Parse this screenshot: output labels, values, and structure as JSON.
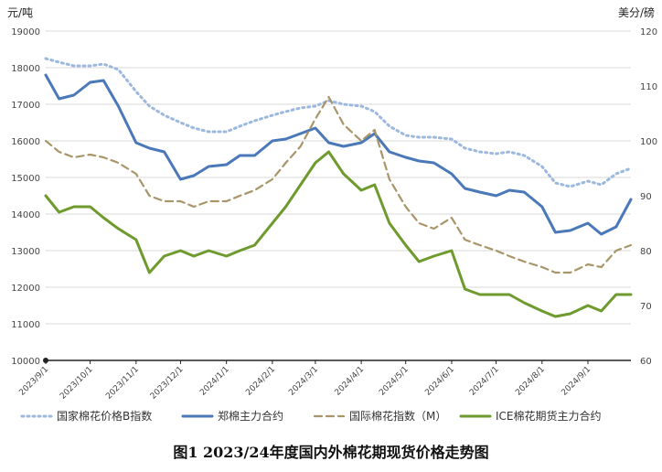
{
  "chart_data": {
    "type": "line",
    "title": "图1 2023/24年度国内外棉花期现货价格走势图",
    "left_axis": {
      "unit": "元/吨",
      "ylim": [
        10000,
        19000
      ],
      "ticks": [
        10000,
        11000,
        12000,
        13000,
        14000,
        15000,
        16000,
        17000,
        18000,
        19000
      ]
    },
    "right_axis": {
      "unit": "美分/磅",
      "ylim": [
        60,
        120
      ],
      "ticks": [
        60,
        70,
        80,
        90,
        100,
        110,
        120
      ]
    },
    "x_ticks": [
      "2023/9/1",
      "2023/10/1",
      "2023/11/1",
      "2023/12/1",
      "2024/1/1",
      "2024/2/1",
      "2024/3/1",
      "2024/4/1",
      "2024/5/1",
      "2024/6/1",
      "2024/7/1",
      "2024/8/1",
      "2024/9/1"
    ],
    "grid": "horizontal",
    "legend_position": "bottom",
    "series": [
      {
        "name": "国家棉花价格B指数",
        "axis": "left",
        "color": "#9db8de",
        "style": "dotted",
        "points": [
          [
            "2023/9/1",
            18250
          ],
          [
            "2023/9/10",
            18150
          ],
          [
            "2023/9/20",
            18050
          ],
          [
            "2023/10/1",
            18050
          ],
          [
            "2023/10/10",
            18100
          ],
          [
            "2023/10/20",
            17950
          ],
          [
            "2023/11/1",
            17350
          ],
          [
            "2023/11/10",
            16950
          ],
          [
            "2023/11/20",
            16700
          ],
          [
            "2023/12/1",
            16500
          ],
          [
            "2023/12/10",
            16350
          ],
          [
            "2023/12/20",
            16250
          ],
          [
            "2024/1/1",
            16250
          ],
          [
            "2024/1/10",
            16400
          ],
          [
            "2024/1/20",
            16550
          ],
          [
            "2024/2/1",
            16700
          ],
          [
            "2024/2/10",
            16800
          ],
          [
            "2024/2/20",
            16900
          ],
          [
            "2024/3/1",
            16950
          ],
          [
            "2024/3/10",
            17100
          ],
          [
            "2024/3/20",
            17000
          ],
          [
            "2024/4/1",
            16950
          ],
          [
            "2024/4/10",
            16800
          ],
          [
            "2024/4/20",
            16400
          ],
          [
            "2024/5/1",
            16150
          ],
          [
            "2024/5/10",
            16100
          ],
          [
            "2024/5/20",
            16100
          ],
          [
            "2024/6/1",
            16050
          ],
          [
            "2024/6/10",
            15800
          ],
          [
            "2024/6/20",
            15700
          ],
          [
            "2024/7/1",
            15650
          ],
          [
            "2024/7/10",
            15700
          ],
          [
            "2024/7/20",
            15600
          ],
          [
            "2024/8/1",
            15300
          ],
          [
            "2024/8/10",
            14850
          ],
          [
            "2024/8/20",
            14750
          ],
          [
            "2024/9/1",
            14900
          ],
          [
            "2024/9/10",
            14800
          ],
          [
            "2024/9/20",
            15100
          ],
          [
            "2024/9/30",
            15250
          ]
        ]
      },
      {
        "name": "郑棉主力合约",
        "axis": "left",
        "color": "#4a78b8",
        "style": "solid",
        "points": [
          [
            "2023/9/1",
            17800
          ],
          [
            "2023/9/10",
            17150
          ],
          [
            "2023/9/20",
            17250
          ],
          [
            "2023/10/1",
            17600
          ],
          [
            "2023/10/10",
            17650
          ],
          [
            "2023/10/20",
            16950
          ],
          [
            "2023/11/1",
            15950
          ],
          [
            "2023/11/10",
            15800
          ],
          [
            "2023/11/20",
            15700
          ],
          [
            "2023/12/1",
            14950
          ],
          [
            "2023/12/10",
            15050
          ],
          [
            "2023/12/20",
            15300
          ],
          [
            "2024/1/1",
            15350
          ],
          [
            "2024/1/10",
            15600
          ],
          [
            "2024/1/20",
            15600
          ],
          [
            "2024/2/1",
            16000
          ],
          [
            "2024/2/10",
            16050
          ],
          [
            "2024/2/20",
            16200
          ],
          [
            "2024/3/1",
            16350
          ],
          [
            "2024/3/10",
            15950
          ],
          [
            "2024/3/20",
            15850
          ],
          [
            "2024/4/1",
            15950
          ],
          [
            "2024/4/10",
            16200
          ],
          [
            "2024/4/20",
            15700
          ],
          [
            "2024/5/1",
            15550
          ],
          [
            "2024/5/10",
            15450
          ],
          [
            "2024/5/20",
            15400
          ],
          [
            "2024/6/1",
            15100
          ],
          [
            "2024/6/10",
            14700
          ],
          [
            "2024/6/20",
            14600
          ],
          [
            "2024/7/1",
            14500
          ],
          [
            "2024/7/10",
            14650
          ],
          [
            "2024/7/20",
            14600
          ],
          [
            "2024/8/1",
            14200
          ],
          [
            "2024/8/10",
            13500
          ],
          [
            "2024/8/20",
            13550
          ],
          [
            "2024/9/1",
            13750
          ],
          [
            "2024/9/10",
            13450
          ],
          [
            "2024/9/20",
            13650
          ],
          [
            "2024/9/30",
            14400
          ]
        ]
      },
      {
        "name": "国际棉花指数（M）",
        "axis": "right",
        "color": "#a8956a",
        "style": "dashed",
        "points": [
          [
            "2023/9/1",
            100
          ],
          [
            "2023/9/10",
            98
          ],
          [
            "2023/9/20",
            97
          ],
          [
            "2023/10/1",
            97.5
          ],
          [
            "2023/10/10",
            97
          ],
          [
            "2023/10/20",
            96
          ],
          [
            "2023/11/1",
            94
          ],
          [
            "2023/11/10",
            90
          ],
          [
            "2023/11/20",
            89
          ],
          [
            "2023/12/1",
            89
          ],
          [
            "2023/12/10",
            88
          ],
          [
            "2023/12/20",
            89
          ],
          [
            "2024/1/1",
            89
          ],
          [
            "2024/1/10",
            90
          ],
          [
            "2024/1/20",
            91
          ],
          [
            "2024/2/1",
            93
          ],
          [
            "2024/2/10",
            96
          ],
          [
            "2024/2/20",
            99
          ],
          [
            "2024/3/1",
            104
          ],
          [
            "2024/3/10",
            108
          ],
          [
            "2024/3/20",
            103
          ],
          [
            "2024/4/1",
            100
          ],
          [
            "2024/4/10",
            102
          ],
          [
            "2024/4/20",
            93
          ],
          [
            "2024/5/1",
            88
          ],
          [
            "2024/5/10",
            85
          ],
          [
            "2024/5/20",
            84
          ],
          [
            "2024/6/1",
            86
          ],
          [
            "2024/6/10",
            82
          ],
          [
            "2024/6/20",
            81
          ],
          [
            "2024/7/1",
            80
          ],
          [
            "2024/7/10",
            79
          ],
          [
            "2024/7/20",
            78
          ],
          [
            "2024/8/1",
            77
          ],
          [
            "2024/8/10",
            76
          ],
          [
            "2024/8/20",
            76
          ],
          [
            "2024/9/1",
            77.5
          ],
          [
            "2024/9/10",
            77
          ],
          [
            "2024/9/20",
            80
          ],
          [
            "2024/9/30",
            81
          ]
        ]
      },
      {
        "name": "ICE棉花期货主力合约",
        "axis": "right",
        "color": "#6e9a2e",
        "style": "solid",
        "points": [
          [
            "2023/9/1",
            90
          ],
          [
            "2023/9/10",
            87
          ],
          [
            "2023/9/20",
            88
          ],
          [
            "2023/10/1",
            88
          ],
          [
            "2023/10/10",
            86
          ],
          [
            "2023/10/20",
            84
          ],
          [
            "2023/11/1",
            82
          ],
          [
            "2023/11/10",
            76
          ],
          [
            "2023/11/20",
            79
          ],
          [
            "2023/12/1",
            80
          ],
          [
            "2023/12/10",
            79
          ],
          [
            "2023/12/20",
            80
          ],
          [
            "2024/1/1",
            79
          ],
          [
            "2024/1/10",
            80
          ],
          [
            "2024/1/20",
            81
          ],
          [
            "2024/2/1",
            85
          ],
          [
            "2024/2/10",
            88
          ],
          [
            "2024/2/20",
            92
          ],
          [
            "2024/3/1",
            96
          ],
          [
            "2024/3/10",
            98
          ],
          [
            "2024/3/20",
            94
          ],
          [
            "2024/4/1",
            91
          ],
          [
            "2024/4/10",
            92
          ],
          [
            "2024/4/20",
            85
          ],
          [
            "2024/5/1",
            81
          ],
          [
            "2024/5/10",
            78
          ],
          [
            "2024/5/20",
            79
          ],
          [
            "2024/6/1",
            80
          ],
          [
            "2024/6/10",
            73
          ],
          [
            "2024/6/20",
            72
          ],
          [
            "2024/7/1",
            72
          ],
          [
            "2024/7/10",
            72
          ],
          [
            "2024/7/20",
            70.5
          ],
          [
            "2024/8/1",
            69
          ],
          [
            "2024/8/10",
            68
          ],
          [
            "2024/8/20",
            68.5
          ],
          [
            "2024/9/1",
            70
          ],
          [
            "2024/9/10",
            69
          ],
          [
            "2024/9/20",
            72
          ],
          [
            "2024/9/30",
            72
          ]
        ]
      }
    ]
  }
}
